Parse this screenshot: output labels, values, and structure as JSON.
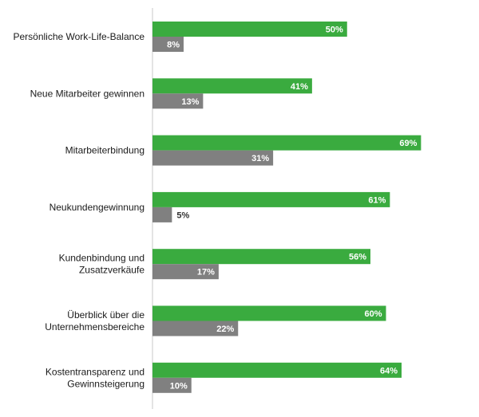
{
  "chart_data": {
    "type": "bar",
    "orientation": "horizontal",
    "categories": [
      [
        "Persönliche Work-Life-Balance"
      ],
      [
        "Neue Mitarbeiter gewinnen"
      ],
      [
        "Mitarbeiterbindung"
      ],
      [
        "Neukundengewinnung"
      ],
      [
        "Kundenbindung und",
        "Zusatzverkäufe"
      ],
      [
        "Überblick über die",
        "Unternehmensbereiche"
      ],
      [
        "Kostentransparenz und",
        "Gewinnsteigerung"
      ]
    ],
    "series": [
      {
        "values": [
          50,
          41,
          69,
          61,
          56,
          60,
          64
        ],
        "labels": [
          "50%",
          "41%",
          "69%",
          "61%",
          "56%",
          "60%",
          "64%"
        ],
        "color": "#3aab3f"
      },
      {
        "values": [
          8,
          13,
          31,
          5,
          17,
          22,
          10
        ],
        "labels": [
          "8%",
          "13%",
          "31%",
          "5%",
          "17%",
          "22%",
          "10%"
        ],
        "color": "#808080"
      }
    ],
    "xlim": [
      0,
      70
    ],
    "grid": false,
    "legend": "none",
    "title": "",
    "xlabel": "",
    "ylabel": ""
  }
}
